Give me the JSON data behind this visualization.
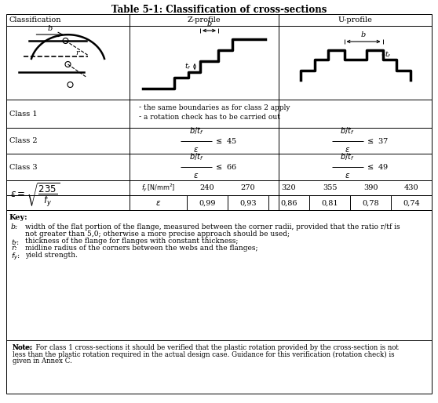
{
  "title": "Table 5-1: Classification of cross-sections",
  "col_headers": [
    "Classification",
    "Z-profile",
    "U-profile"
  ],
  "class1_text_1": "the same boundaries as for class 2 apply",
  "class1_text_2": "a rotation check has to be carried out",
  "fy_values": [
    "240",
    "270",
    "320",
    "355",
    "390",
    "430"
  ],
  "eps_values": [
    "0,99",
    "0,93",
    "0,86",
    "0,81",
    "0,78",
    "0,74"
  ],
  "key_b": "b:",
  "key_tf": "tf:",
  "key_r": "r:",
  "key_fy": "fy:",
  "key_b_text": "width of the flat portion of the flange, measured between the corner radii, provided that the ratio r/tf is",
  "key_b_text2": "not greater than 5,0; otherwise a more precise approach should be used;",
  "key_tf_text": "thickness of the flange for flanges with constant thickness;",
  "key_r_text": "midline radius of the corners between the webs and the flanges;",
  "key_fy_text": "yield strength.",
  "note_text": "Note:  For class 1 cross-sections it should be verified that the plastic rotation provided by the cross-section is not less than the plastic rotation required in the actual design case. Guidance for this verification (rotation check) is given in Annex C.",
  "bg_color": "#ffffff",
  "text_color": "#000000",
  "figw": 5.58,
  "figh": 5.14,
  "dpi": 100
}
